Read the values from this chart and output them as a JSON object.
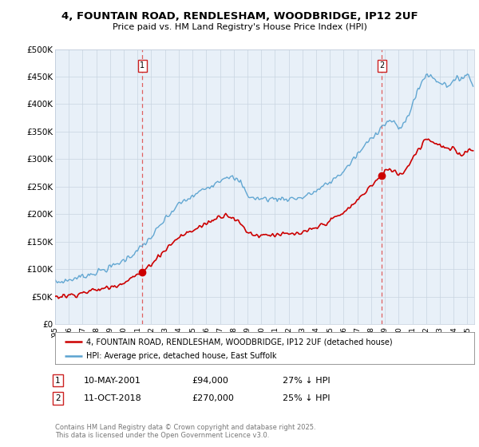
{
  "title": "4, FOUNTAIN ROAD, RENDLESHAM, WOODBRIDGE, IP12 2UF",
  "subtitle": "Price paid vs. HM Land Registry's House Price Index (HPI)",
  "ylabel_ticks": [
    "£0",
    "£50K",
    "£100K",
    "£150K",
    "£200K",
    "£250K",
    "£300K",
    "£350K",
    "£400K",
    "£450K",
    "£500K"
  ],
  "ytick_values": [
    0,
    50000,
    100000,
    150000,
    200000,
    250000,
    300000,
    350000,
    400000,
    450000,
    500000
  ],
  "xlim_start": 1995.0,
  "xlim_end": 2025.5,
  "ylim": [
    0,
    500000
  ],
  "sale1_date": 2001.36,
  "sale1_price": 94000,
  "sale1_label": "1",
  "sale2_date": 2018.78,
  "sale2_price": 270000,
  "sale2_label": "2",
  "hpi_color": "#5ba3d0",
  "price_color": "#cc0000",
  "vline_color": "#e06060",
  "chart_bg": "#e8f0f8",
  "legend_label_price": "4, FOUNTAIN ROAD, RENDLESHAM, WOODBRIDGE, IP12 2UF (detached house)",
  "legend_label_hpi": "HPI: Average price, detached house, East Suffolk",
  "note1_label": "1",
  "note1_date": "10-MAY-2001",
  "note1_price": "£94,000",
  "note1_pct": "27% ↓ HPI",
  "note2_label": "2",
  "note2_date": "11-OCT-2018",
  "note2_price": "£270,000",
  "note2_pct": "25% ↓ HPI",
  "footer": "Contains HM Land Registry data © Crown copyright and database right 2025.\nThis data is licensed under the Open Government Licence v3.0.",
  "background_color": "#ffffff"
}
